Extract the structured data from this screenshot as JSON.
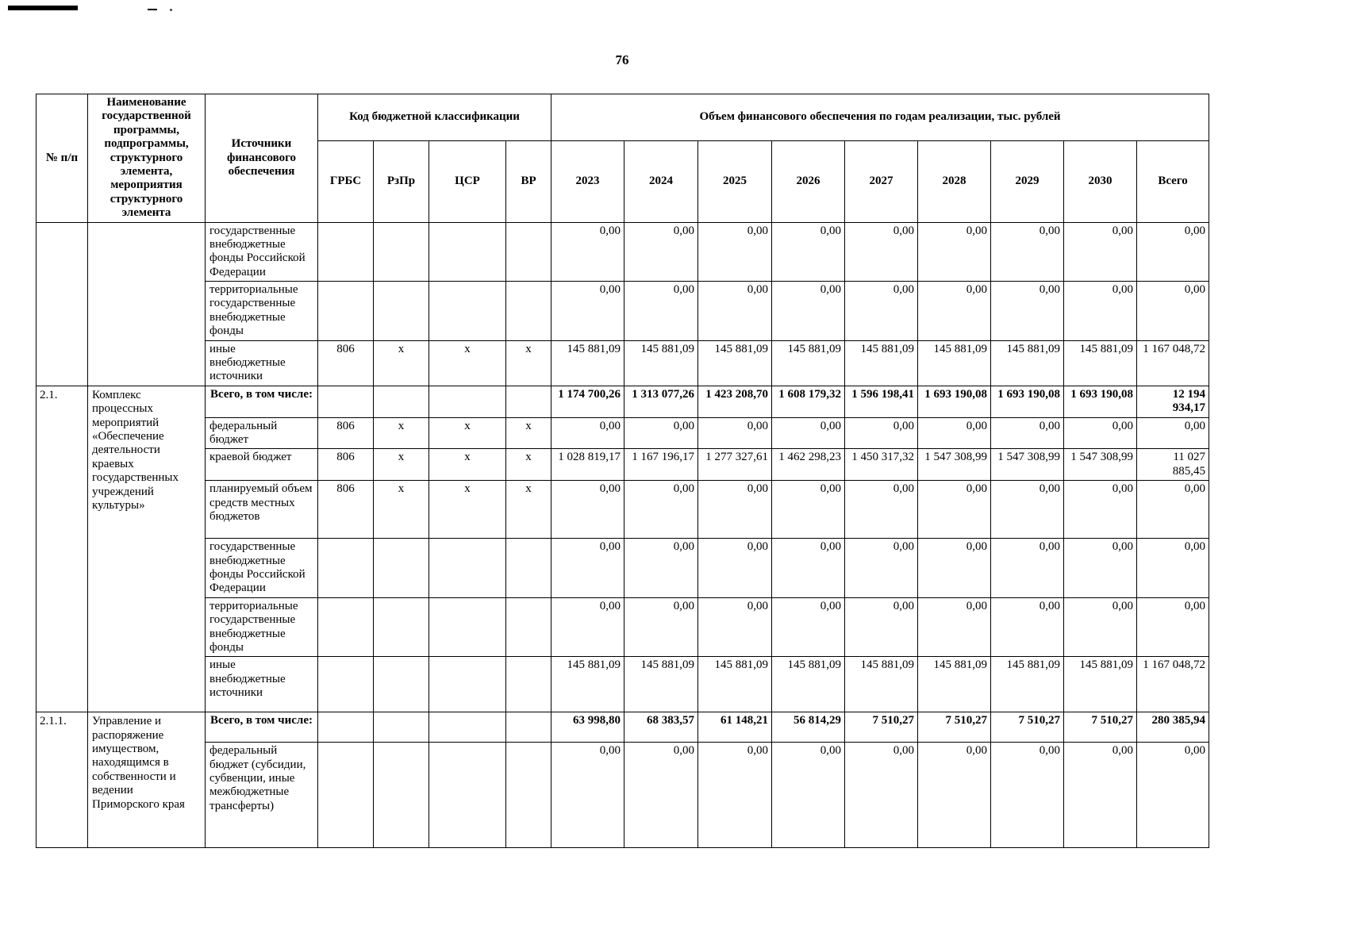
{
  "page": {
    "number": "76"
  },
  "table": {
    "headers": {
      "num": "№ п/п",
      "name": "Наименование государственной программы, подпрограммы, структурного элемента, мероприятия структурного элемента",
      "source": "Источники финансового обеспечения",
      "budget_code": "Код бюджетной классификации",
      "code_cols": [
        "ГРБС",
        "РзПр",
        "ЦСР",
        "ВР"
      ],
      "volume": "Объем финансового обеспечения по годам реализации, тыс. рублей",
      "year_cols": [
        "2023",
        "2024",
        "2025",
        "2026",
        "2027",
        "2028",
        "2029",
        "2030",
        "Всего"
      ]
    },
    "groups": [
      {
        "num": "",
        "name": "",
        "rows": [
          {
            "source": "государственные внебюджетные фонды Российской Федерации",
            "bold": false,
            "codes": [
              "",
              "",
              "",
              ""
            ],
            "values": [
              "0,00",
              "0,00",
              "0,00",
              "0,00",
              "0,00",
              "0,00",
              "0,00",
              "0,00",
              "0,00"
            ]
          },
          {
            "source": "территориальные государственные внебюджетные фонды",
            "bold": false,
            "codes": [
              "",
              "",
              "",
              ""
            ],
            "values": [
              "0,00",
              "0,00",
              "0,00",
              "0,00",
              "0,00",
              "0,00",
              "0,00",
              "0,00",
              "0,00"
            ]
          },
          {
            "source": "иные внебюджетные источники",
            "bold": false,
            "codes": [
              "806",
              "х",
              "х",
              "х"
            ],
            "values": [
              "145 881,09",
              "145 881,09",
              "145 881,09",
              "145 881,09",
              "145 881,09",
              "145 881,09",
              "145 881,09",
              "145 881,09",
              "1 167 048,72"
            ]
          }
        ]
      },
      {
        "num": "2.1.",
        "name": "Комплекс процессных мероприятий «Обеспечение деятельности краевых государственных учреждений культуры»",
        "rows": [
          {
            "source": "Всего, в том числе:",
            "bold": true,
            "codes": [
              "",
              "",
              "",
              ""
            ],
            "values": [
              "1 174 700,26",
              "1 313 077,26",
              "1 423 208,70",
              "1 608 179,32",
              "1 596 198,41",
              "1 693 190,08",
              "1 693 190,08",
              "1 693 190,08",
              "12 194 934,17"
            ]
          },
          {
            "source": "федеральный бюджет",
            "bold": false,
            "codes": [
              "806",
              "х",
              "х",
              "х"
            ],
            "values": [
              "0,00",
              "0,00",
              "0,00",
              "0,00",
              "0,00",
              "0,00",
              "0,00",
              "0,00",
              "0,00"
            ]
          },
          {
            "source": "краевой бюджет",
            "bold": false,
            "codes": [
              "806",
              "х",
              "х",
              "х"
            ],
            "values": [
              "1 028 819,17",
              "1 167 196,17",
              "1 277 327,61",
              "1 462 298,23",
              "1 450 317,32",
              "1 547 308,99",
              "1 547 308,99",
              "1 547 308,99",
              "11 027 885,45"
            ]
          },
          {
            "source": "планируемый объем средств местных бюджетов",
            "bold": false,
            "codes": [
              "806",
              "х",
              "х",
              "х"
            ],
            "values": [
              "0,00",
              "0,00",
              "0,00",
              "0,00",
              "0,00",
              "0,00",
              "0,00",
              "0,00",
              "0,00"
            ]
          },
          {
            "source": "государственные внебюджетные фонды Российской Федерации",
            "bold": false,
            "codes": [
              "",
              "",
              "",
              ""
            ],
            "values": [
              "0,00",
              "0,00",
              "0,00",
              "0,00",
              "0,00",
              "0,00",
              "0,00",
              "0,00",
              "0,00"
            ]
          },
          {
            "source": "территориальные государственные внебюджетные фонды",
            "bold": false,
            "codes": [
              "",
              "",
              "",
              ""
            ],
            "values": [
              "0,00",
              "0,00",
              "0,00",
              "0,00",
              "0,00",
              "0,00",
              "0,00",
              "0,00",
              "0,00"
            ]
          },
          {
            "source": "иные внебюджетные источники",
            "bold": false,
            "codes": [
              "",
              "",
              "",
              ""
            ],
            "values": [
              "145 881,09",
              "145 881,09",
              "145 881,09",
              "145 881,09",
              "145 881,09",
              "145 881,09",
              "145 881,09",
              "145 881,09",
              "1 167 048,72"
            ]
          }
        ]
      },
      {
        "num": "2.1.1.",
        "name": "Управление и распоряжение имуществом, находящимся в собственности и ведении Приморского края",
        "rows": [
          {
            "source": "Всего, в том числе:",
            "bold": true,
            "codes": [
              "",
              "",
              "",
              ""
            ],
            "values": [
              "63 998,80",
              "68 383,57",
              "61 148,21",
              "56 814,29",
              "7 510,27",
              "7 510,27",
              "7 510,27",
              "7 510,27",
              "280 385,94"
            ]
          },
          {
            "source": "федеральный бюджет (субсидии, субвенции, иные межбюджетные трансферты)",
            "bold": false,
            "codes": [
              "",
              "",
              "",
              ""
            ],
            "values": [
              "0,00",
              "0,00",
              "0,00",
              "0,00",
              "0,00",
              "0,00",
              "0,00",
              "0,00",
              "0,00"
            ]
          }
        ]
      }
    ]
  }
}
